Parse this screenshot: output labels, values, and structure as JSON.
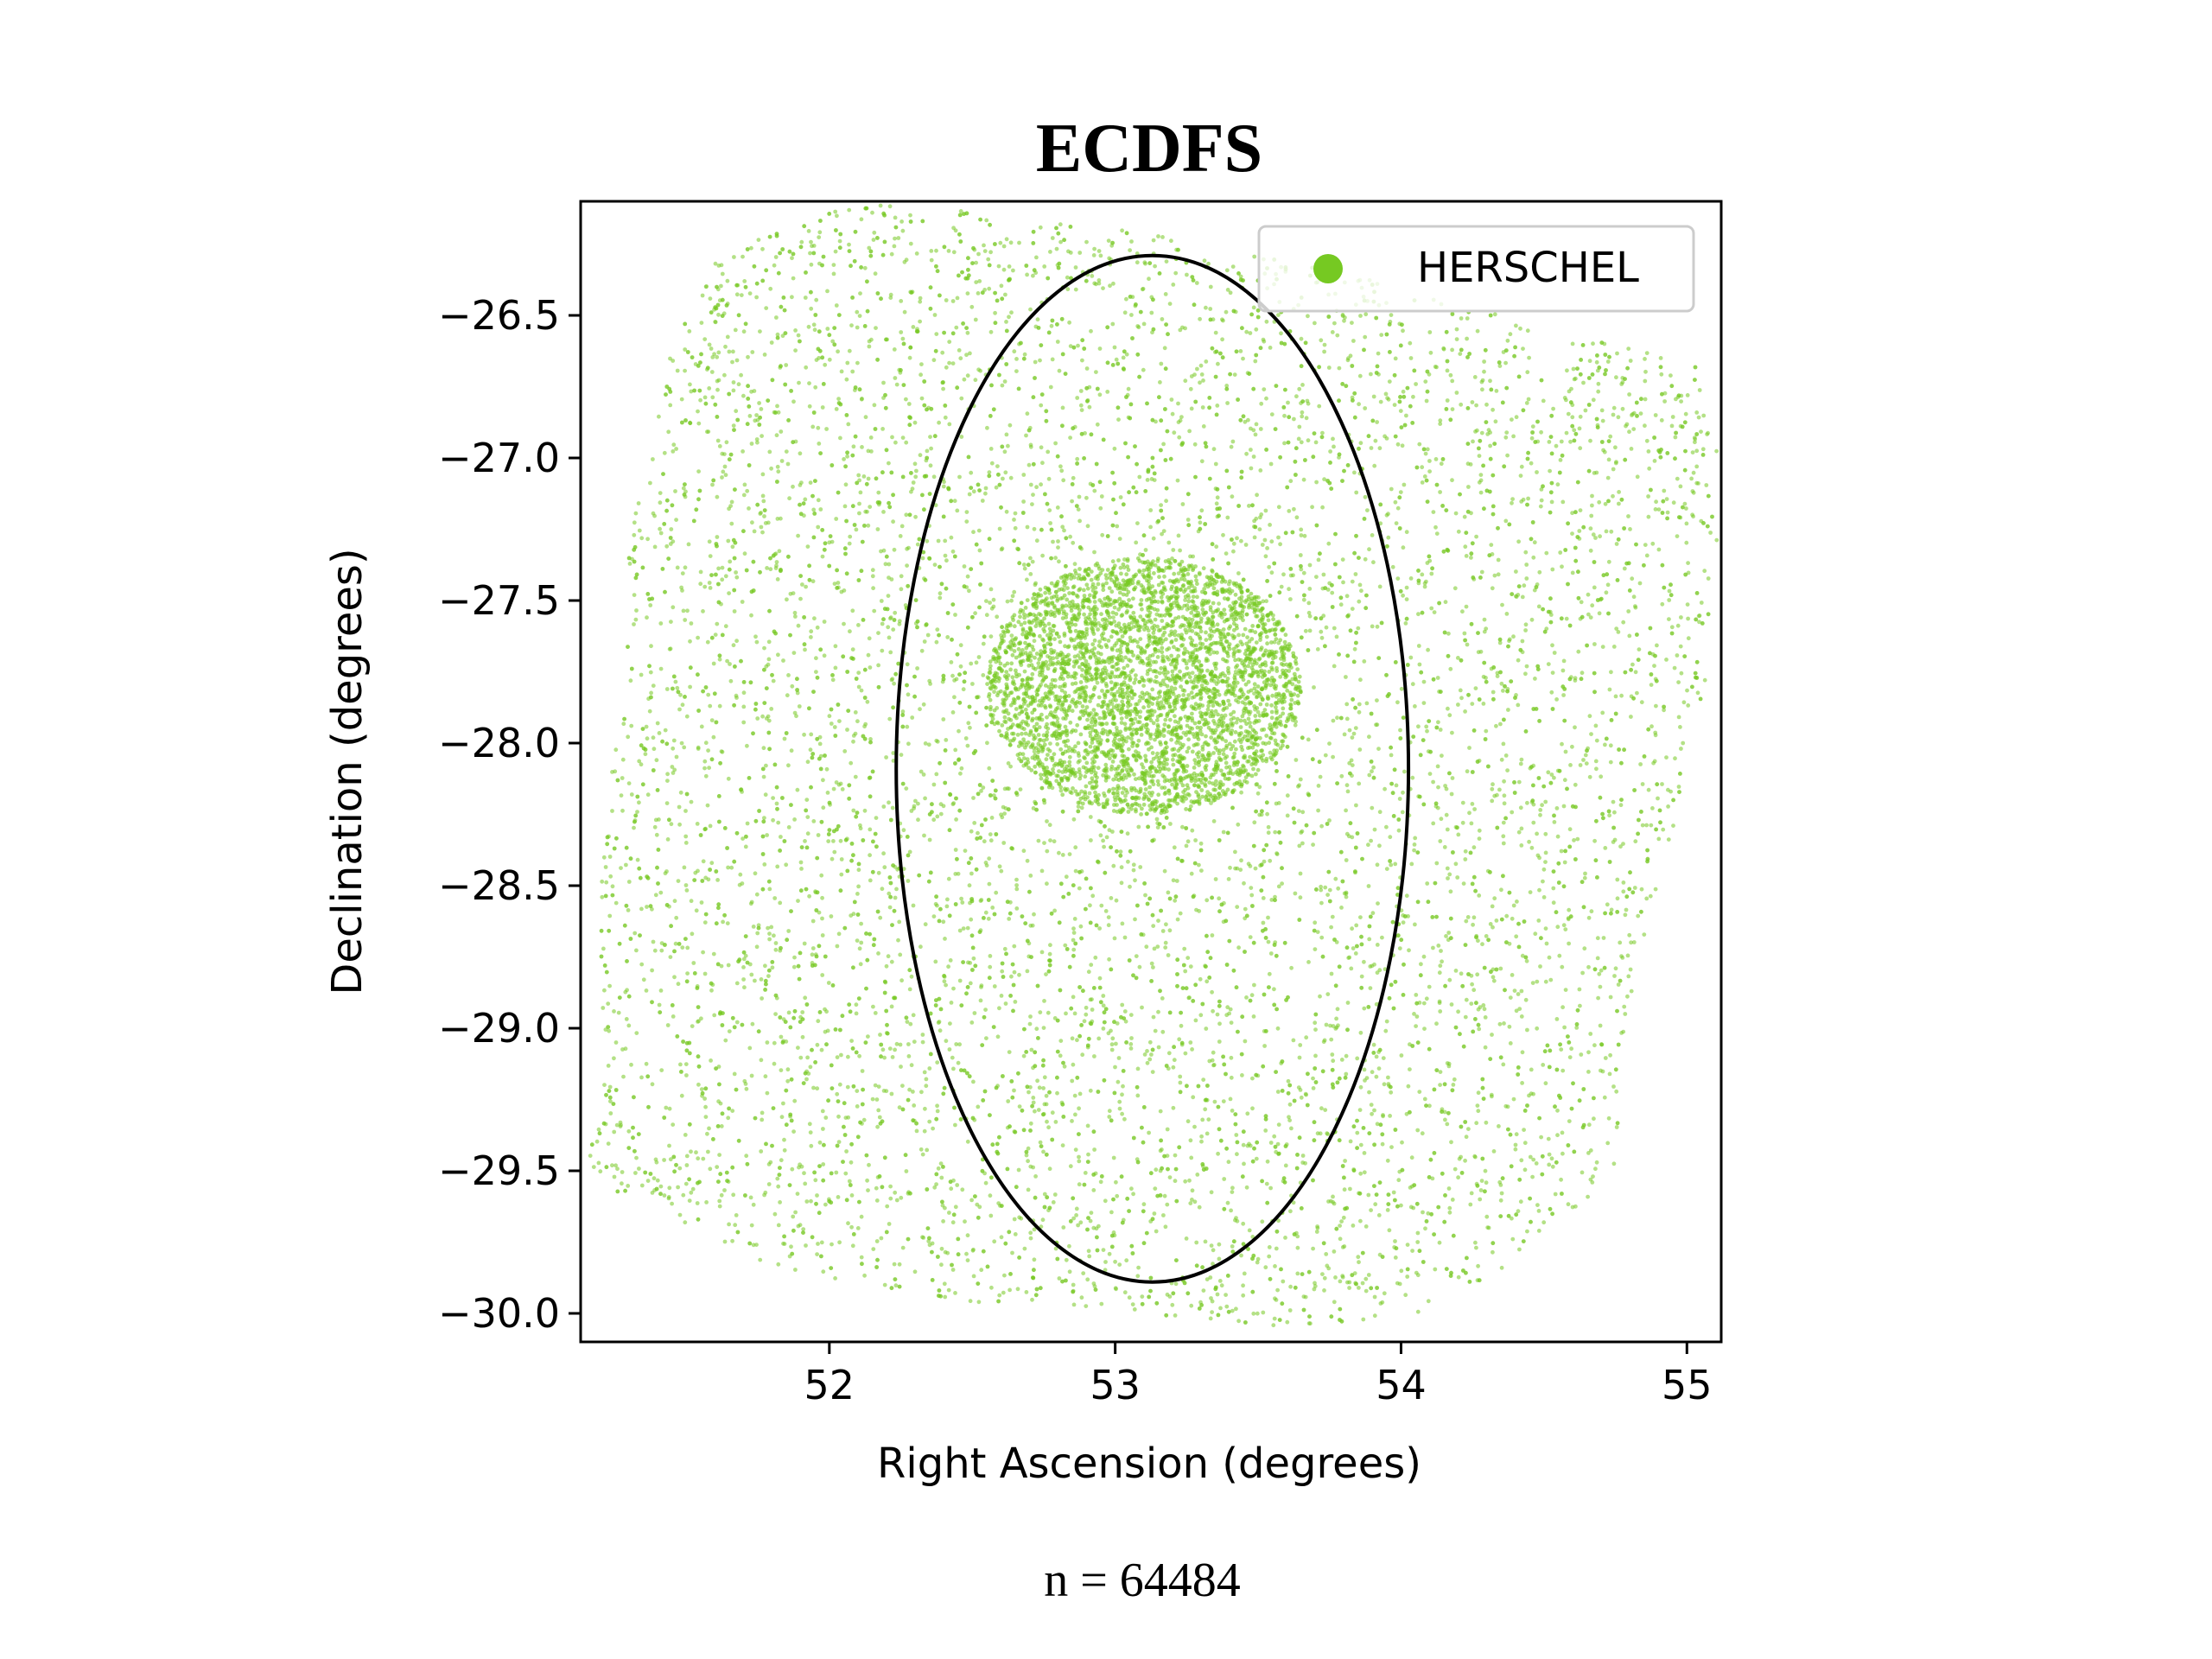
{
  "chart_data": {
    "type": "scatter",
    "title": "ECDFS",
    "xlabel": "Right Ascension (degrees)",
    "ylabel": "Declination (degrees)",
    "xlim": [
      51.13,
      55.12
    ],
    "ylim": [
      -30.1,
      -26.1
    ],
    "xticks": [
      52,
      53,
      54,
      55
    ],
    "xtick_labels": [
      "52",
      "53",
      "54",
      "55"
    ],
    "yticks": [
      -26.5,
      -27.0,
      -27.5,
      -28.0,
      -28.5,
      -29.0,
      -29.5,
      -30.0
    ],
    "ytick_labels": [
      "−26.5",
      "−27.0",
      "−27.5",
      "−28.0",
      "−28.5",
      "−29.0",
      "−29.5",
      "−30.0"
    ],
    "grid": false,
    "legend": {
      "placement": "top-right",
      "entries": [
        "HERSCHEL"
      ]
    },
    "series": [
      {
        "name": "HERSCHEL",
        "color": "#76c922",
        "count": 64484,
        "footprint_polygon": [
          [
            51.15,
            -29.5
          ],
          [
            51.2,
            -29.2
          ],
          [
            51.2,
            -28.5
          ],
          [
            51.27,
            -27.8
          ],
          [
            51.3,
            -27.3
          ],
          [
            51.4,
            -26.8
          ],
          [
            51.45,
            -26.6
          ],
          [
            51.6,
            -26.3
          ],
          [
            51.9,
            -26.15
          ],
          [
            52.2,
            -26.1
          ],
          [
            52.6,
            -26.15
          ],
          [
            53.2,
            -26.22
          ],
          [
            53.8,
            -26.35
          ],
          [
            54.2,
            -26.45
          ],
          [
            54.5,
            -26.55
          ],
          [
            55.05,
            -26.65
          ],
          [
            55.12,
            -27.0
          ],
          [
            55.08,
            -27.8
          ],
          [
            54.9,
            -28.5
          ],
          [
            54.8,
            -28.9
          ],
          [
            54.75,
            -29.5
          ],
          [
            54.5,
            -29.75
          ],
          [
            54.1,
            -30.0
          ],
          [
            53.6,
            -30.05
          ],
          [
            53.0,
            -30.0
          ],
          [
            52.4,
            -29.95
          ],
          [
            52.0,
            -29.9
          ],
          [
            51.7,
            -29.8
          ],
          [
            51.3,
            -29.6
          ]
        ],
        "dense_core": {
          "ra": 53.1,
          "dec": -27.8,
          "radius_ra": 0.55,
          "radius_dec": 0.45
        }
      }
    ],
    "circle": {
      "center_ra": 53.13,
      "center_dec": -28.09,
      "radius_deg": 0.8,
      "color": "#000000"
    },
    "annotation": "n = 64484"
  }
}
